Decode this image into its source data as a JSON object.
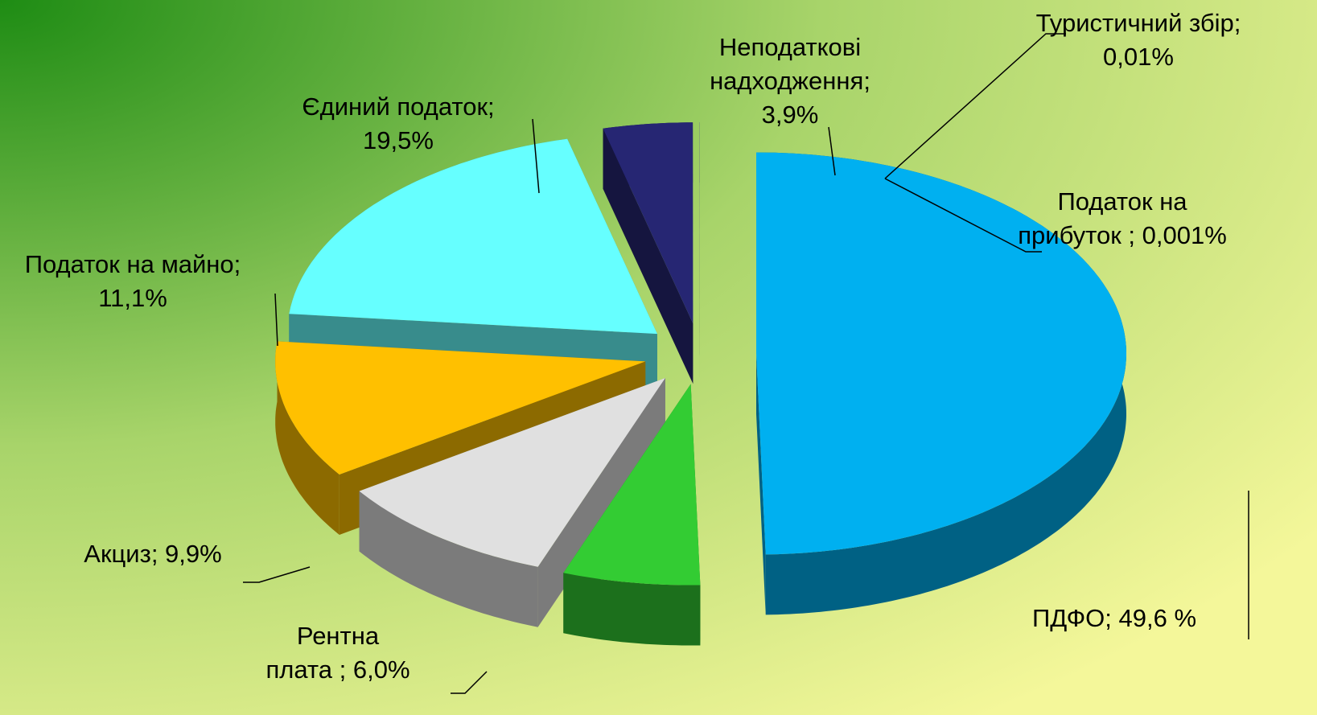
{
  "chart_data": {
    "type": "pie",
    "three_d": true,
    "exploded": true,
    "values": [
      49.6,
      6.0,
      9.9,
      11.1,
      19.5,
      3.9,
      0.01,
      0.001
    ],
    "value_labels": [
      "ПДФО; 49,6 %",
      "Рентна\nплата ; 6,0%",
      "Акциз; 9,9%",
      "Податок на майно;\n11,1%",
      "Єдиний податок;\n19,5%",
      "Неподаткові\nнадходження;\n3,9%",
      "Туристичний збір;\n0,01%",
      "Податок на\nприбуток ; 0,001%"
    ],
    "colors": [
      "#00b0f0",
      "#33cc33",
      "#e0e0e0",
      "#ffc000",
      "#66ffff",
      "#262673",
      "#7a7aa6",
      "#7a7aa6"
    ]
  }
}
